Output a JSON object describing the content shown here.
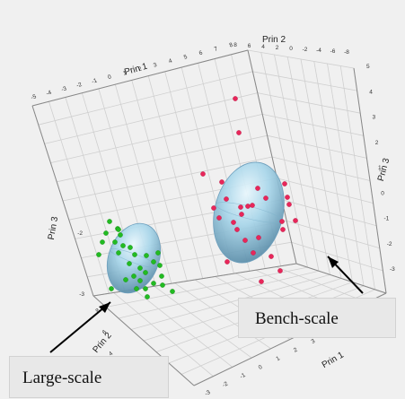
{
  "chart_data": {
    "type": "scatter",
    "title": "",
    "axes": {
      "prin1": {
        "label": "Prin 1",
        "ticks": [
          "-5",
          "-4",
          "-3",
          "-2",
          "-1",
          "0",
          "1",
          "2",
          "3",
          "4",
          "5",
          "6",
          "7",
          "8"
        ]
      },
      "prin2": {
        "label": "Prin 2",
        "ticks": [
          "8",
          "6",
          "4",
          "2",
          "0",
          "-2",
          "-4",
          "-6",
          "-8"
        ]
      },
      "prin3": {
        "label": "Prin 3",
        "ticks": [
          "5",
          "4",
          "3",
          "2",
          "1",
          "0",
          "-1",
          "-2",
          "-3"
        ]
      },
      "prin1_front": {
        "label": "Prin 1",
        "ticks": [
          "-3",
          "-2",
          "-1",
          "0",
          "1",
          "2",
          "3",
          "4",
          "5",
          "6",
          "7"
        ]
      },
      "prin2_front": {
        "label": "Prin 2",
        "ticks": [
          "8",
          "6",
          "4",
          "2"
        ]
      },
      "prin3_left": {
        "label": "Prin 3",
        "ticks": [
          "1",
          "0",
          "-1",
          "-2",
          "-3",
          "-4",
          "-5"
        ]
      }
    },
    "series": [
      {
        "name": "Large-scale",
        "color": "#22bb22",
        "count": 30
      },
      {
        "name": "Bench-scale",
        "color": "#e8265a",
        "count": 28
      }
    ],
    "ellipsoid_color": "#9fd3ea",
    "grid": true,
    "annotations": [
      "Large-scale",
      "Bench-scale"
    ]
  }
}
